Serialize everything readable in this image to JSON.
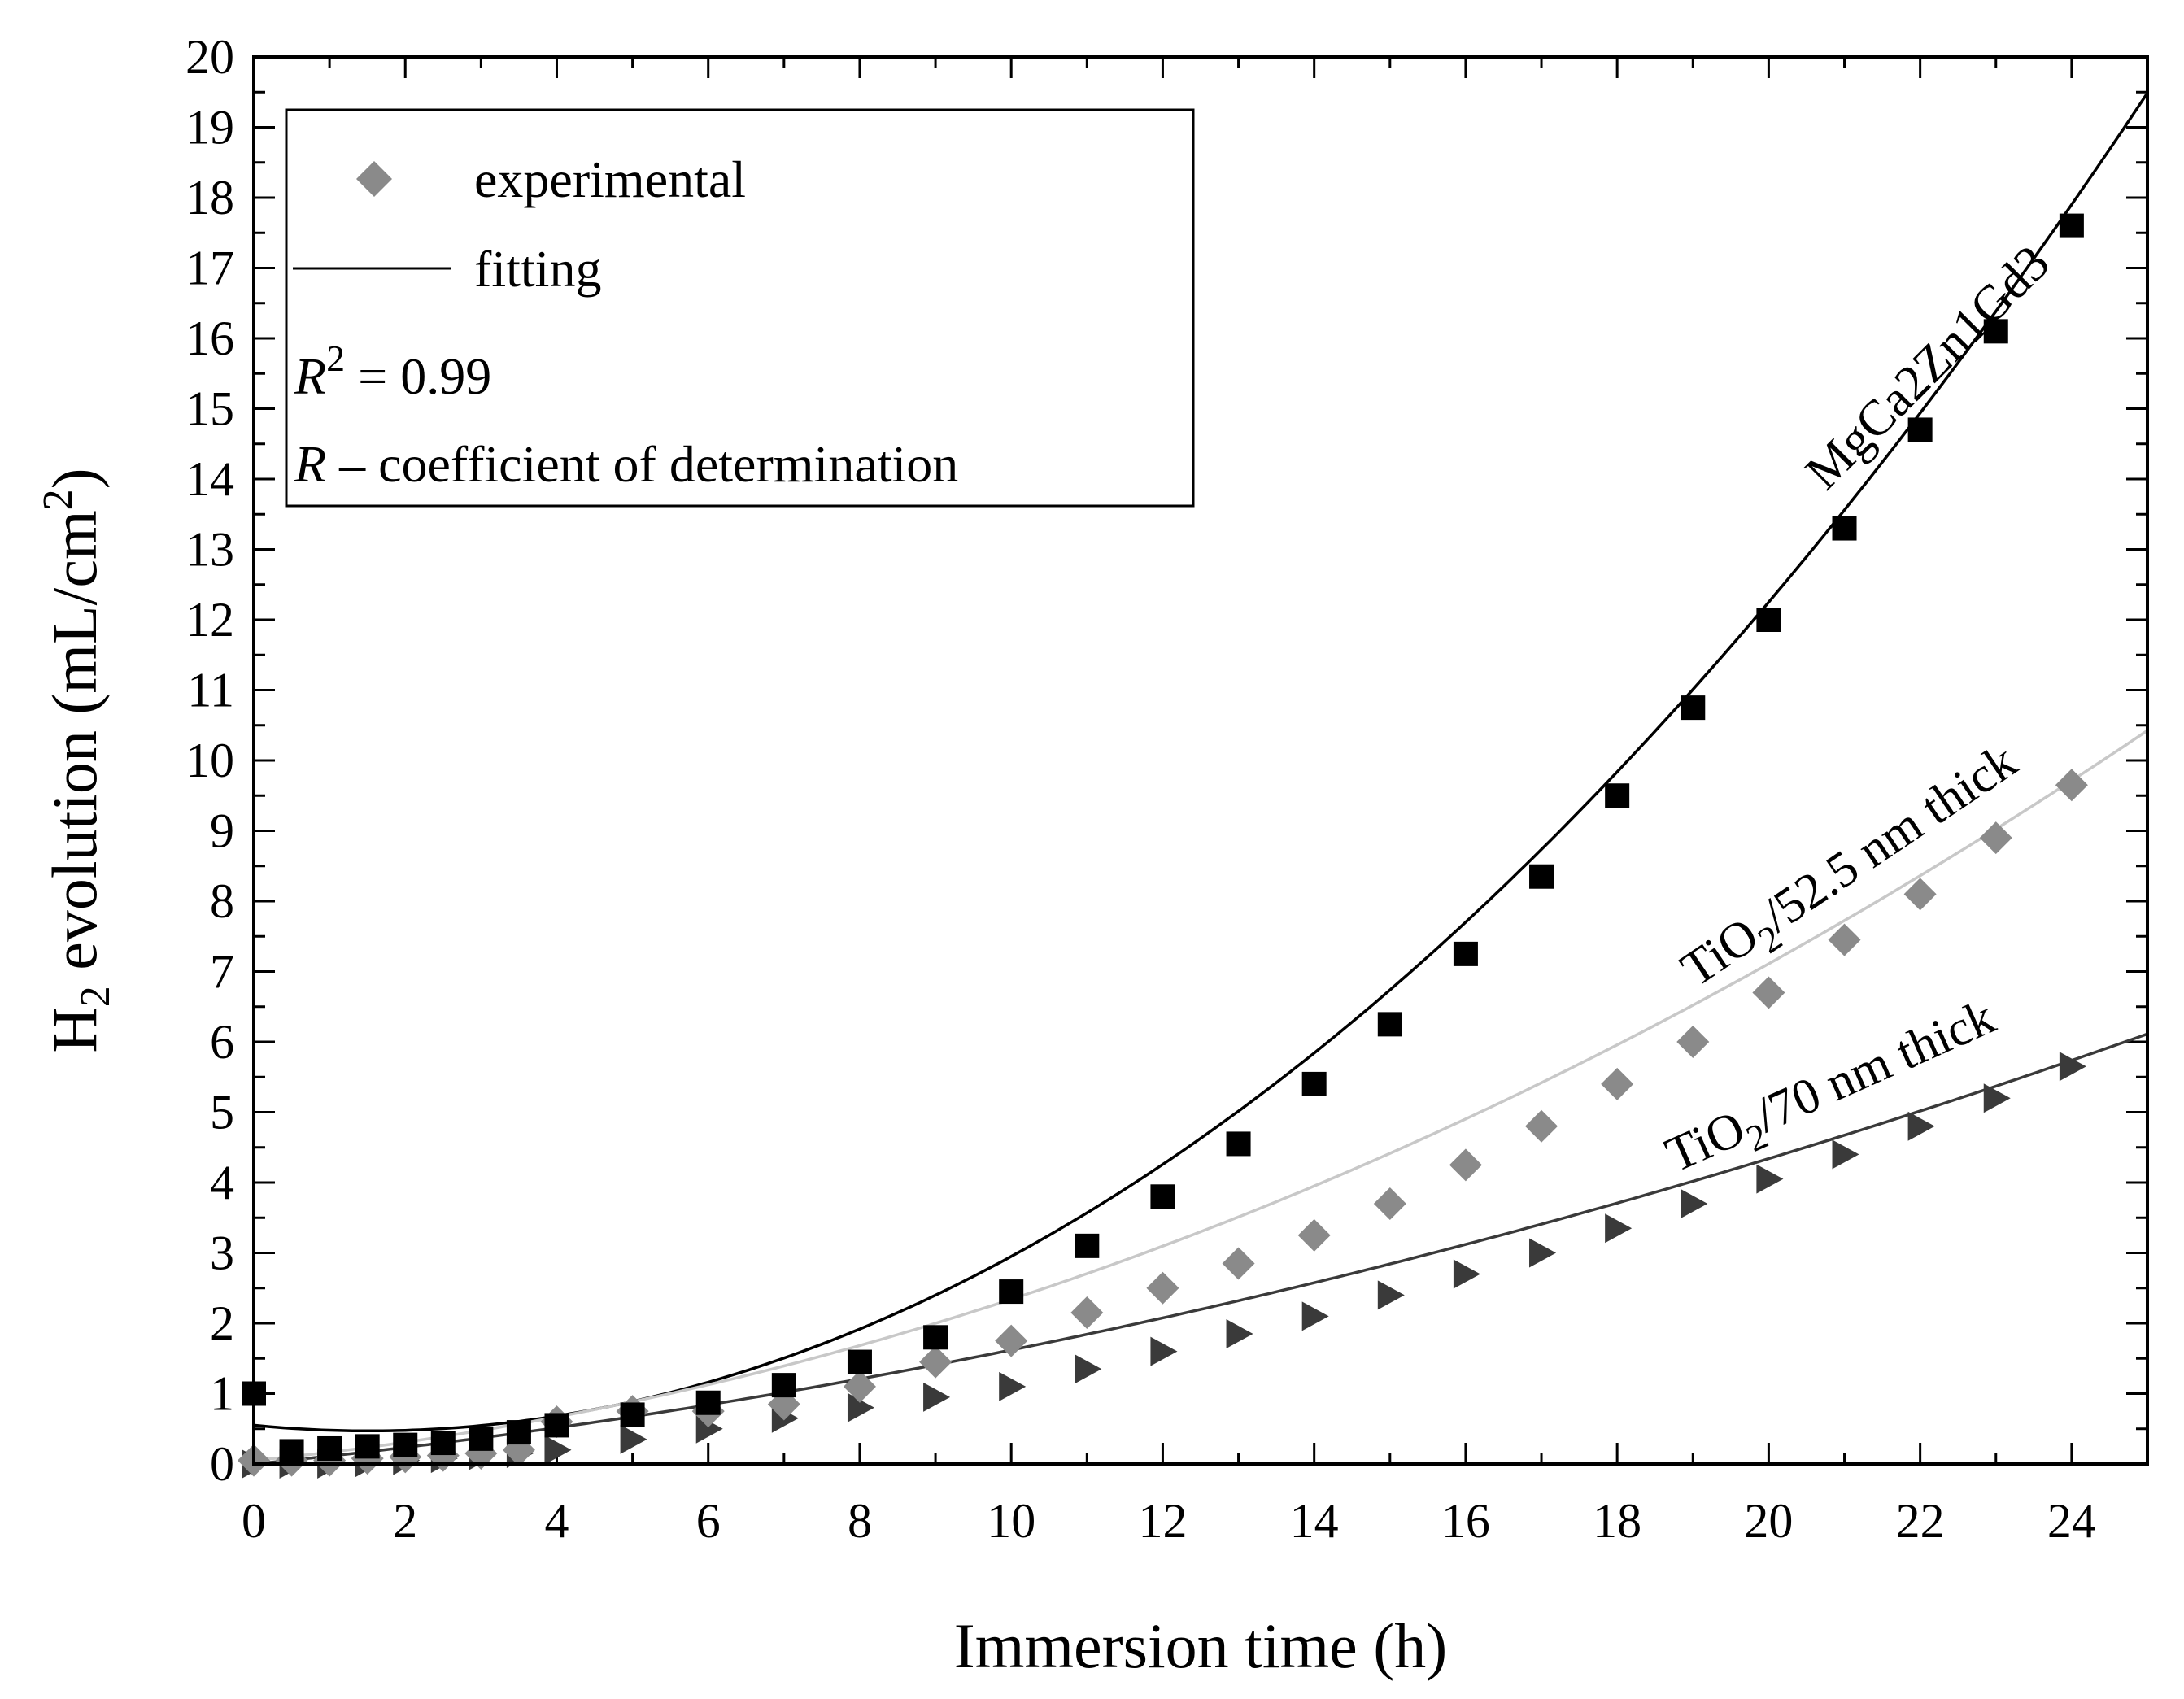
{
  "chart_data": {
    "type": "scatter",
    "xlabel": "Immersion time (h)",
    "ylabel": {
      "prefix": "H",
      "sub": "2",
      "middle": " evolution (mL/cm",
      "sup": "2",
      "suffix": ")"
    },
    "xlim": [
      0,
      25
    ],
    "ylim": [
      0,
      20
    ],
    "xticks": [
      0,
      2,
      4,
      6,
      8,
      10,
      12,
      14,
      16,
      18,
      20,
      22,
      24
    ],
    "yticks": [
      0,
      1,
      2,
      3,
      4,
      5,
      6,
      7,
      8,
      9,
      10,
      11,
      12,
      13,
      14,
      15,
      16,
      17,
      18,
      19,
      20
    ],
    "legend": {
      "position": "top-left",
      "experimental_label": "experimental",
      "fitting_label": "fitting",
      "r2": {
        "symbol": "R",
        "sup": "2",
        "value": " = 0.99"
      },
      "note": {
        "symbol": "R",
        "text": " – coefficient of determination"
      }
    },
    "series": [
      {
        "name": "MgCa2Zn1Gd3",
        "label": {
          "text": "MgCa2Zn1Gd3"
        },
        "marker": "square",
        "color": "#000000",
        "fit_color": "#000000",
        "x": [
          0,
          0.5,
          1,
          1.5,
          2,
          2.5,
          3,
          3.5,
          4,
          5,
          6,
          7,
          8,
          9,
          10,
          11,
          12,
          13,
          14,
          15,
          16,
          17,
          18,
          19,
          20,
          21,
          22,
          23,
          24
        ],
        "y": [
          1.0,
          0.18,
          0.22,
          0.25,
          0.27,
          0.3,
          0.36,
          0.45,
          0.55,
          0.7,
          0.87,
          1.12,
          1.45,
          1.8,
          2.45,
          3.1,
          3.8,
          4.55,
          5.4,
          6.25,
          7.25,
          8.35,
          9.5,
          10.75,
          12.0,
          13.3,
          14.7,
          16.1,
          17.6
        ],
        "fit": [
          0.55,
          -0.105,
          0.0345
        ]
      },
      {
        "name": "TiO2/52.5 nm thick",
        "label": {
          "prefix": "TiO",
          "sub": "2",
          "suffix": "/52.5 nm thick"
        },
        "marker": "diamond",
        "color": "#8a8a8a",
        "fit_color": "#c8c8c8",
        "x": [
          0,
          0.5,
          1,
          1.5,
          2,
          2.5,
          3,
          3.5,
          4,
          5,
          6,
          7,
          8,
          9,
          10,
          11,
          12,
          13,
          14,
          15,
          16,
          17,
          18,
          19,
          20,
          21,
          22,
          23,
          24
        ],
        "y": [
          0.05,
          0.05,
          0.05,
          0.08,
          0.1,
          0.12,
          0.15,
          0.2,
          0.6,
          0.75,
          0.75,
          0.85,
          1.1,
          1.45,
          1.75,
          2.15,
          2.5,
          2.85,
          3.25,
          3.7,
          4.25,
          4.8,
          5.4,
          6.0,
          6.7,
          7.45,
          8.1,
          8.9,
          9.65
        ],
        "fit": [
          0.05,
          0.105,
          0.0124
        ]
      },
      {
        "name": "TiO2/70 nm thick",
        "label": {
          "prefix": "TiO",
          "sub": "2",
          "suffix": "/70 nm thick"
        },
        "marker": "triangle-right",
        "color": "#3a3a3a",
        "fit_color": "#3a3a3a",
        "x": [
          0,
          0.5,
          1,
          1.5,
          2,
          2.5,
          3,
          3.5,
          4,
          5,
          6,
          7,
          8,
          9,
          10,
          11,
          12,
          13,
          14,
          15,
          16,
          17,
          18,
          19,
          20,
          21,
          22,
          23,
          24
        ],
        "y": [
          0.0,
          0.0,
          0.0,
          0.02,
          0.05,
          0.08,
          0.12,
          0.15,
          0.2,
          0.35,
          0.5,
          0.65,
          0.8,
          0.95,
          1.1,
          1.35,
          1.6,
          1.85,
          2.1,
          2.4,
          2.7,
          3.0,
          3.35,
          3.7,
          4.05,
          4.4,
          4.8,
          5.2,
          5.65
        ],
        "fit": [
          0.0,
          0.107,
          0.0055
        ]
      }
    ]
  }
}
